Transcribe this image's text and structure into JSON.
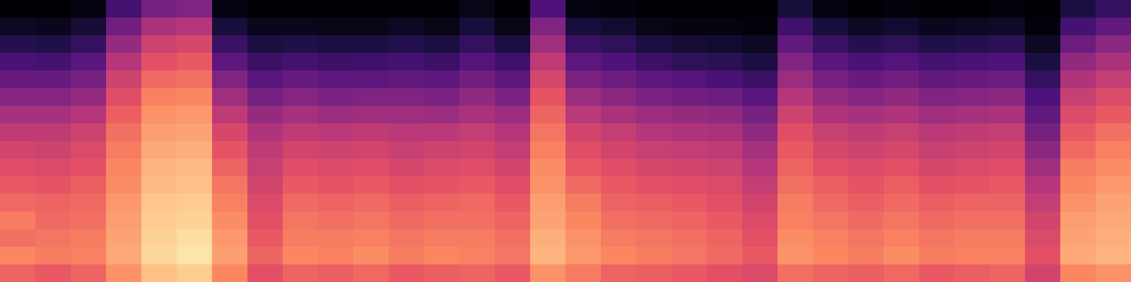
{
  "chart_data": {
    "type": "heatmap",
    "color": "magma",
    "tick_labels": false,
    "grid": false,
    "zlim": [
      -80,
      0
    ],
    "cells": [
      [
        -26,
        -28,
        -26,
        -18,
        -10,
        -8,
        -20,
        -30,
        -26,
        -27,
        -25,
        -28,
        -27,
        -26,
        -28,
        -18,
        -22,
        -26,
        -27,
        -28,
        -30,
        -32,
        -24,
        -26,
        -27,
        -25,
        -28,
        -27,
        -26,
        -34,
        -20,
        -18
      ],
      [
        -20,
        -22,
        -21,
        -14,
        -6,
        -4,
        -16,
        -26,
        -20,
        -21,
        -19,
        -22,
        -20,
        -21,
        -23,
        -12,
        -17,
        -20,
        -22,
        -23,
        -25,
        -28,
        -18,
        -20,
        -22,
        -19,
        -22,
        -21,
        -21,
        -30,
        -14,
        -12
      ],
      [
        -24,
        -23,
        -22,
        -15,
        -7,
        -5,
        -17,
        -28,
        -22,
        -22,
        -21,
        -23,
        -22,
        -22,
        -24,
        -13,
        -18,
        -22,
        -23,
        -24,
        -26,
        -30,
        -19,
        -21,
        -23,
        -21,
        -23,
        -22,
        -22,
        -32,
        -15,
        -13
      ],
      [
        -22,
        -25,
        -24,
        -16,
        -8,
        -7,
        -19,
        -30,
        -23,
        -24,
        -23,
        -25,
        -24,
        -24,
        -26,
        -15,
        -20,
        -24,
        -25,
        -26,
        -28,
        -32,
        -21,
        -23,
        -25,
        -23,
        -25,
        -24,
        -24,
        -34,
        -16,
        -14
      ],
      [
        -25,
        -26,
        -25,
        -17,
        -9,
        -8,
        -21,
        -32,
        -25,
        -26,
        -25,
        -27,
        -26,
        -25,
        -28,
        -16,
        -22,
        -26,
        -27,
        -28,
        -30,
        -34,
        -22,
        -25,
        -27,
        -25,
        -27,
        -26,
        -26,
        -37,
        -18,
        -15
      ],
      [
        -28,
        -29,
        -27,
        -19,
        -11,
        -10,
        -23,
        -34,
        -28,
        -29,
        -28,
        -30,
        -29,
        -28,
        -31,
        -18,
        -25,
        -28,
        -30,
        -31,
        -32,
        -37,
        -24,
        -27,
        -29,
        -27,
        -30,
        -29,
        -28,
        -40,
        -20,
        -17
      ],
      [
        -31,
        -32,
        -30,
        -20,
        -12,
        -11,
        -26,
        -36,
        -31,
        -32,
        -31,
        -33,
        -32,
        -31,
        -34,
        -19,
        -28,
        -31,
        -33,
        -34,
        -35,
        -40,
        -26,
        -30,
        -32,
        -30,
        -33,
        -32,
        -31,
        -44,
        -22,
        -19
      ],
      [
        -34,
        -35,
        -32,
        -22,
        -14,
        -13,
        -29,
        -38,
        -34,
        -35,
        -34,
        -36,
        -35,
        -34,
        -37,
        -21,
        -31,
        -34,
        -36,
        -37,
        -38,
        -43,
        -28,
        -33,
        -35,
        -33,
        -36,
        -35,
        -34,
        -48,
        -25,
        -21
      ],
      [
        -38,
        -38,
        -35,
        -24,
        -16,
        -15,
        -33,
        -41,
        -38,
        -39,
        -38,
        -39,
        -39,
        -37,
        -40,
        -23,
        -34,
        -37,
        -40,
        -41,
        -42,
        -47,
        -31,
        -36,
        -38,
        -36,
        -39,
        -38,
        -37,
        -52,
        -28,
        -24
      ],
      [
        -43,
        -43,
        -40,
        -27,
        -18,
        -17,
        -38,
        -46,
        -43,
        -45,
        -44,
        -44,
        -45,
        -42,
        -45,
        -26,
        -39,
        -42,
        -45,
        -46,
        -47,
        -52,
        -35,
        -41,
        -43,
        -41,
        -44,
        -43,
        -42,
        -56,
        -32,
        -28
      ],
      [
        -49,
        -49,
        -46,
        -31,
        -21,
        -20,
        -44,
        -52,
        -49,
        -51,
        -50,
        -50,
        -51,
        -47,
        -51,
        -29,
        -45,
        -48,
        -51,
        -53,
        -54,
        -58,
        -40,
        -46,
        -49,
        -47,
        -50,
        -49,
        -48,
        -60,
        -36,
        -32
      ],
      [
        -55,
        -55,
        -52,
        -35,
        -25,
        -24,
        -50,
        -58,
        -55,
        -57,
        -57,
        -56,
        -57,
        -53,
        -57,
        -33,
        -51,
        -54,
        -57,
        -59,
        -61,
        -64,
        -45,
        -52,
        -55,
        -53,
        -56,
        -55,
        -54,
        -65,
        -41,
        -37
      ],
      [
        -61,
        -62,
        -58,
        -40,
        -30,
        -28,
        -57,
        -64,
        -62,
        -64,
        -63,
        -62,
        -64,
        -59,
        -63,
        -38,
        -57,
        -60,
        -64,
        -66,
        -67,
        -70,
        -50,
        -58,
        -61,
        -59,
        -62,
        -61,
        -60,
        -70,
        -47,
        -42
      ],
      [
        -68,
        -69,
        -65,
        -46,
        -35,
        -33,
        -64,
        -70,
        -69,
        -70,
        -70,
        -68,
        -70,
        -65,
        -70,
        -44,
        -64,
        -66,
        -70,
        -72,
        -73,
        -75,
        -56,
        -64,
        -68,
        -66,
        -69,
        -68,
        -67,
        -75,
        -54,
        -48
      ],
      [
        -75,
        -76,
        -72,
        -53,
        -42,
        -40,
        -71,
        -76,
        -76,
        -77,
        -77,
        -75,
        -77,
        -71,
        -77,
        -50,
        -71,
        -73,
        -77,
        -78,
        -78,
        -79,
        -63,
        -71,
        -75,
        -73,
        -76,
        -75,
        -74,
        -79,
        -62,
        -56
      ],
      [
        -80,
        -80,
        -78,
        -62,
        -52,
        -50,
        -78,
        -80,
        -80,
        -80,
        -80,
        -80,
        -80,
        -77,
        -80,
        -60,
        -78,
        -79,
        -80,
        -80,
        -80,
        -80,
        -71,
        -78,
        -80,
        -79,
        -80,
        -80,
        -79,
        -80,
        -70,
        -65
      ]
    ]
  }
}
